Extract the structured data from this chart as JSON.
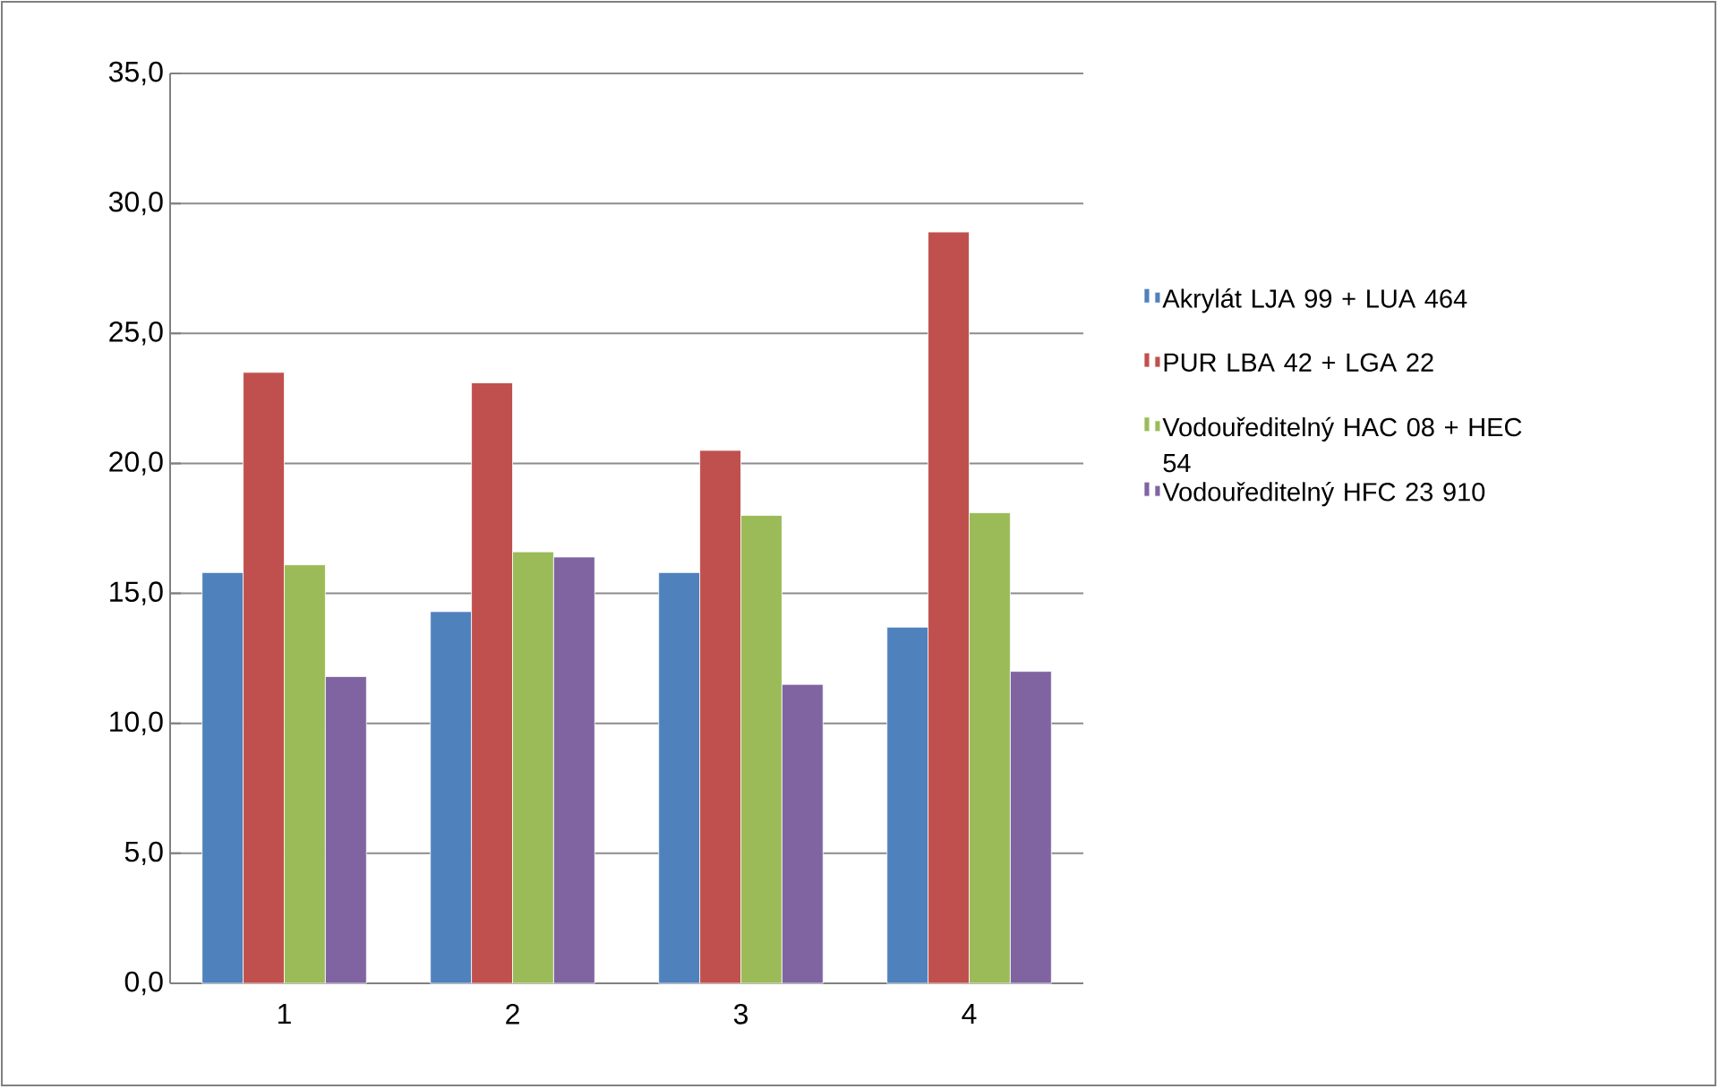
{
  "chart_data": {
    "type": "bar",
    "categories": [
      "1",
      "2",
      "3",
      "4"
    ],
    "series": [
      {
        "name": "Akrylát LJA 99 + LUA 464",
        "color": "#4f81bd",
        "values": [
          15.8,
          14.3,
          15.8,
          13.7
        ]
      },
      {
        "name": "PUR LBA 42 + LGA 22",
        "color": "#c0504d",
        "values": [
          23.5,
          23.1,
          20.5,
          28.9
        ]
      },
      {
        "name": "Vodouředitelný HAC 08 + HEC 54",
        "color": "#9bbb59",
        "values": [
          16.1,
          16.6,
          18.0,
          18.1
        ]
      },
      {
        "name": "Vodouředitelný HFC 23 910",
        "color": "#8064a2",
        "values": [
          11.8,
          16.4,
          11.5,
          12.0
        ]
      }
    ],
    "ylim": [
      0,
      35
    ],
    "yticks": [
      {
        "value": 0,
        "label": "0,0"
      },
      {
        "value": 5,
        "label": "5,0"
      },
      {
        "value": 10,
        "label": "10,0"
      },
      {
        "value": 15,
        "label": "15,0"
      },
      {
        "value": 20,
        "label": "20,0"
      },
      {
        "value": 25,
        "label": "25,0"
      },
      {
        "value": 30,
        "label": "30,0"
      },
      {
        "value": 35,
        "label": "35,0"
      }
    ],
    "grid": "y",
    "legend": "right"
  }
}
